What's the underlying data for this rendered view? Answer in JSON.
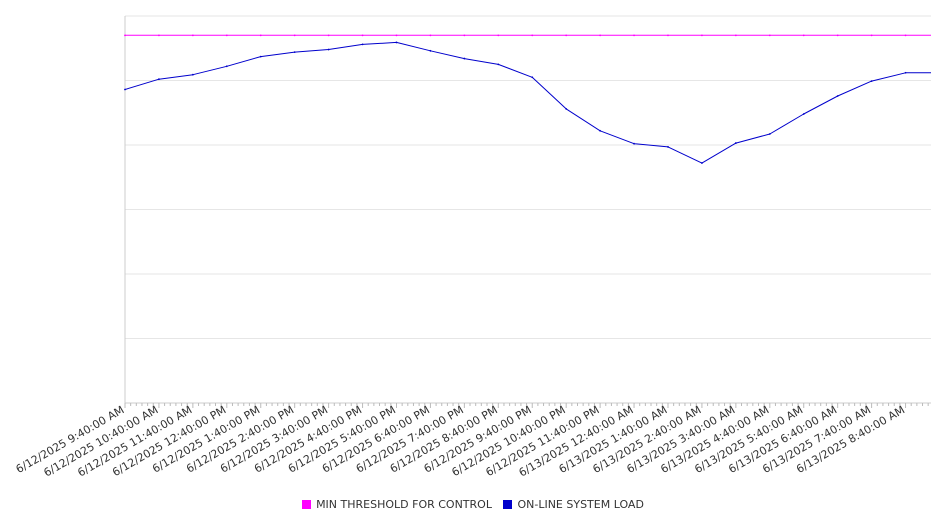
{
  "chart_data": {
    "type": "line",
    "title": "",
    "xlabel": "",
    "ylabel": "",
    "ylim": [
      0,
      6
    ],
    "grid": true,
    "legend_position": "bottom",
    "categories": [
      "6/12/2025 9:40:00 AM",
      "6/12/2025 10:40:00 AM",
      "6/12/2025 11:40:00 AM",
      "6/12/2025 12:40:00 PM",
      "6/12/2025 1:40:00 PM",
      "6/12/2025 2:40:00 PM",
      "6/12/2025 3:40:00 PM",
      "6/12/2025 4:40:00 PM",
      "6/12/2025 5:40:00 PM",
      "6/12/2025 6:40:00 PM",
      "6/12/2025 7:40:00 PM",
      "6/12/2025 8:40:00 PM",
      "6/12/2025 9:40:00 PM",
      "6/12/2025 10:40:00 PM",
      "6/12/2025 11:40:00 PM",
      "6/13/2025 12:40:00 AM",
      "6/13/2025 1:40:00 AM",
      "6/13/2025 2:40:00 AM",
      "6/13/2025 3:40:00 AM",
      "6/13/2025 4:40:00 AM",
      "6/13/2025 5:40:00 AM",
      "6/13/2025 6:40:00 AM",
      "6/13/2025 7:40:00 AM",
      "6/13/2025 8:40:00 AM"
    ],
    "series": [
      {
        "name": "MIN THRESHOLD FOR CONTROL",
        "color": "#ff00ff",
        "values": [
          5.7,
          5.7,
          5.7,
          5.7,
          5.7,
          5.7,
          5.7,
          5.7,
          5.7,
          5.7,
          5.7,
          5.7,
          5.7,
          5.7,
          5.7,
          5.7,
          5.7,
          5.7,
          5.7,
          5.7,
          5.7,
          5.7,
          5.7,
          5.7
        ]
      },
      {
        "name": "ON-LINE SYSTEM LOAD",
        "color": "#0000cc",
        "values": [
          4.86,
          5.02,
          5.09,
          5.22,
          5.37,
          5.44,
          5.48,
          5.56,
          5.59,
          5.46,
          5.34,
          5.25,
          5.05,
          4.56,
          4.22,
          4.02,
          3.97,
          3.72,
          4.03,
          4.17,
          4.48,
          4.76,
          4.99,
          5.12
        ]
      }
    ]
  }
}
